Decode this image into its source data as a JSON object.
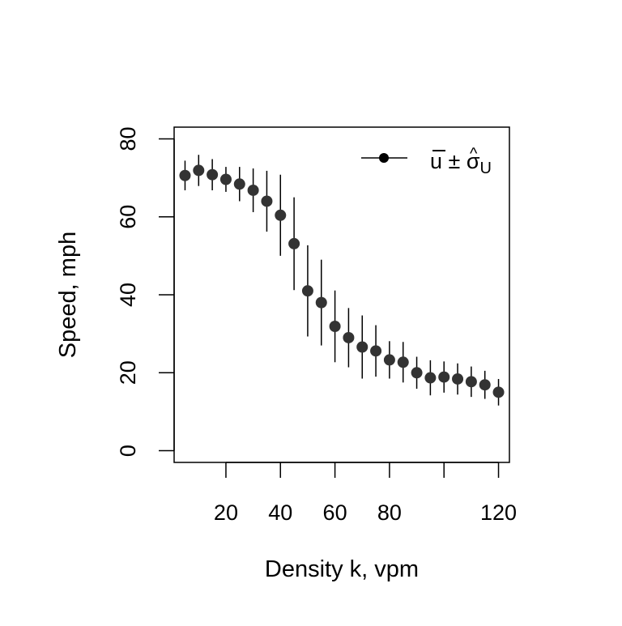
{
  "chart_data": {
    "type": "scatter",
    "title": "",
    "xlabel": "Density k, vpm",
    "ylabel": "Speed, mph",
    "xlim": [
      1,
      124
    ],
    "ylim": [
      -3,
      83
    ],
    "xticks": [
      20,
      40,
      60,
      80,
      100,
      120
    ],
    "xtick_labels": [
      "20",
      "40",
      "60",
      "80",
      "",
      "120"
    ],
    "yticks": [
      0,
      20,
      40,
      60,
      80
    ],
    "ytick_labels": [
      "0",
      "20",
      "40",
      "60",
      "80"
    ],
    "grid": false,
    "legend_position": "top-right",
    "legend_label": "u ± σU",
    "marker_color": "#333333",
    "series": [
      {
        "x": [
          5,
          10,
          15,
          20,
          25,
          30,
          35,
          40,
          45,
          50,
          55,
          60,
          65,
          70,
          75,
          80,
          85,
          90,
          95,
          100,
          105,
          110,
          115,
          120
        ],
        "y": [
          70.6,
          71.9,
          70.8,
          69.6,
          68.4,
          66.8,
          64.0,
          60.4,
          53.1,
          41.0,
          38.0,
          31.9,
          29.0,
          26.6,
          25.6,
          23.3,
          22.7,
          20.0,
          18.7,
          18.9,
          18.4,
          17.7,
          16.9,
          15.0
        ],
        "error": [
          3.8,
          4.0,
          4.0,
          3.2,
          4.4,
          5.6,
          7.8,
          10.4,
          11.9,
          11.7,
          11.0,
          9.2,
          7.6,
          8.1,
          6.6,
          4.8,
          5.2,
          4.1,
          4.5,
          4.0,
          4.0,
          3.9,
          3.6,
          3.4
        ]
      }
    ]
  }
}
